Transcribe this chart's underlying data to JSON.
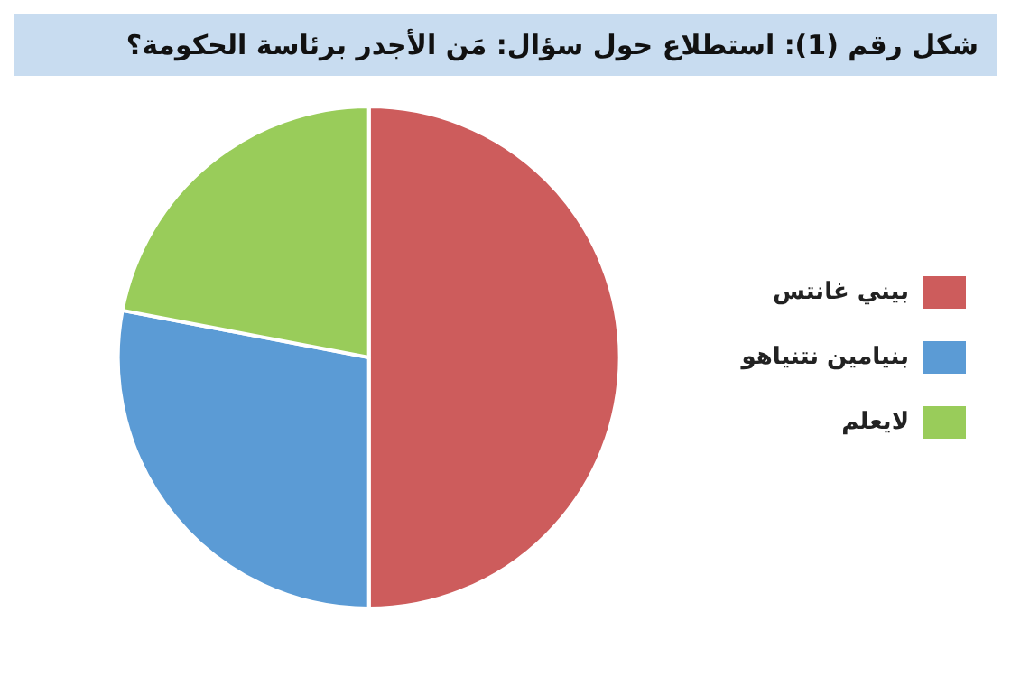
{
  "chart_data": {
    "type": "pie",
    "title": "شكل رقم (1): استطلاع حول سؤال: مَن الأجدر برئاسة الحكومة؟",
    "categories": [
      "بيني غانتس",
      "بنيامين نتنياهو",
      "لايعلم"
    ],
    "values": [
      50,
      28,
      22
    ],
    "colors": [
      "#cd5c5c",
      "#5b9bd5",
      "#99cc5a"
    ],
    "legend": "right"
  }
}
